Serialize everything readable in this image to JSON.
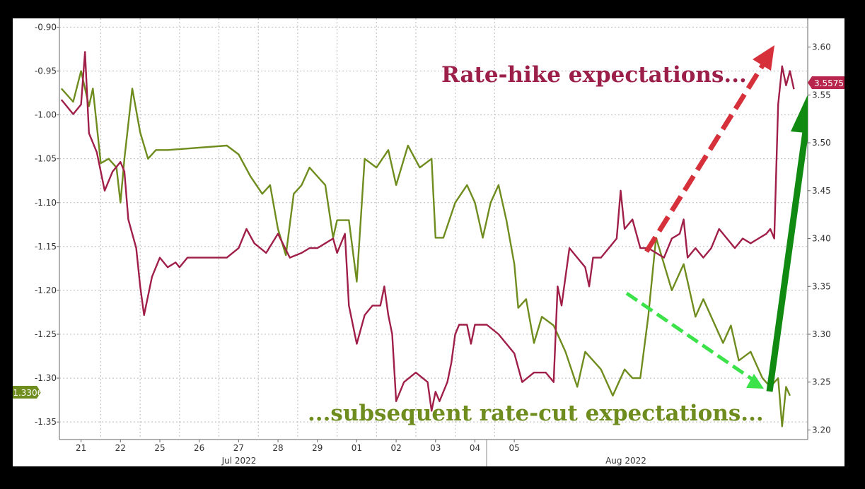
{
  "chart_data": {
    "type": "line",
    "title": "",
    "x": [
      "21",
      "22",
      "25",
      "26",
      "27",
      "28",
      "29",
      "01",
      "02",
      "03",
      "04",
      "05"
    ],
    "x_month_labels": [
      "Jul 2022",
      "Aug 2022"
    ],
    "left_axis": {
      "ylim": [
        -1.37,
        -0.89
      ],
      "ticks": [
        "-0.90",
        "-0.95",
        "-1.00",
        "-1.05",
        "-1.10",
        "-1.15",
        "-1.20",
        "-1.25",
        "-1.30",
        "-1.35"
      ]
    },
    "right_axis": {
      "ylim": [
        3.19,
        3.63
      ],
      "ticks": [
        "3.60",
        "3.55",
        "3.50",
        "3.45",
        "3.40",
        "3.35",
        "3.30",
        "3.25",
        "3.20"
      ]
    },
    "grid": true,
    "series": [
      {
        "axis": "left",
        "color": "#6f8c1e",
        "points": [
          [
            20.5,
            -0.97
          ],
          [
            20.8,
            -0.985
          ],
          [
            21.0,
            -0.95
          ],
          [
            21.2,
            -0.99
          ],
          [
            21.3,
            -0.97
          ],
          [
            21.5,
            -1.055
          ],
          [
            21.7,
            -1.05
          ],
          [
            21.9,
            -1.06
          ],
          [
            22.0,
            -1.1
          ],
          [
            22.1,
            -1.05
          ],
          [
            22.3,
            -0.97
          ],
          [
            22.5,
            -1.02
          ],
          [
            22.7,
            -1.05
          ],
          [
            22.9,
            -1.04
          ],
          [
            23.2,
            -1.04
          ],
          [
            24.7,
            -1.035
          ],
          [
            25.0,
            -1.045
          ],
          [
            25.3,
            -1.07
          ],
          [
            25.6,
            -1.09
          ],
          [
            25.8,
            -1.08
          ],
          [
            26.0,
            -1.13
          ],
          [
            26.2,
            -1.16
          ],
          [
            26.4,
            -1.09
          ],
          [
            26.6,
            -1.08
          ],
          [
            26.8,
            -1.06
          ],
          [
            27.0,
            -1.07
          ],
          [
            27.2,
            -1.08
          ],
          [
            27.4,
            -1.14
          ],
          [
            27.5,
            -1.12
          ],
          [
            27.8,
            -1.12
          ],
          [
            28.0,
            -1.19
          ],
          [
            28.2,
            -1.05
          ],
          [
            28.5,
            -1.06
          ],
          [
            28.8,
            -1.04
          ],
          [
            29.0,
            -1.08
          ],
          [
            29.3,
            -1.035
          ],
          [
            29.6,
            -1.06
          ],
          [
            29.9,
            -1.05
          ],
          [
            30.0,
            -1.14
          ],
          [
            30.2,
            -1.14
          ],
          [
            30.5,
            -1.1
          ],
          [
            30.8,
            -1.08
          ],
          [
            31.0,
            -1.1
          ],
          [
            31.2,
            -1.14
          ],
          [
            31.4,
            -1.1
          ],
          [
            31.6,
            -1.08
          ],
          [
            31.8,
            -1.12
          ],
          [
            32.0,
            -1.17
          ],
          [
            32.1,
            -1.22
          ],
          [
            32.3,
            -1.21
          ],
          [
            32.5,
            -1.26
          ],
          [
            32.7,
            -1.23
          ],
          [
            33.0,
            -1.24
          ],
          [
            33.3,
            -1.27
          ],
          [
            33.6,
            -1.31
          ],
          [
            33.8,
            -1.27
          ],
          [
            34.0,
            -1.28
          ],
          [
            34.2,
            -1.29
          ],
          [
            34.5,
            -1.32
          ],
          [
            34.8,
            -1.29
          ],
          [
            35.0,
            -1.3
          ],
          [
            35.2,
            -1.3
          ],
          [
            35.4,
            -1.23
          ],
          [
            35.6,
            -1.14
          ],
          [
            35.8,
            -1.17
          ],
          [
            36.0,
            -1.2
          ],
          [
            36.2,
            -1.18
          ],
          [
            36.3,
            -1.17
          ],
          [
            36.4,
            -1.19
          ],
          [
            36.6,
            -1.23
          ],
          [
            36.8,
            -1.21
          ],
          [
            37.0,
            -1.23
          ],
          [
            37.3,
            -1.26
          ],
          [
            37.5,
            -1.24
          ],
          [
            37.7,
            -1.28
          ],
          [
            38.0,
            -1.27
          ],
          [
            38.3,
            -1.3
          ],
          [
            38.5,
            -1.31
          ],
          [
            38.7,
            -1.3
          ],
          [
            38.8,
            -1.355
          ],
          [
            38.9,
            -1.31
          ],
          [
            39.0,
            -1.32
          ]
        ]
      },
      {
        "axis": "right",
        "color": "#a01f48",
        "points": [
          [
            20.5,
            3.545
          ],
          [
            20.8,
            3.53
          ],
          [
            21.0,
            3.54
          ],
          [
            21.1,
            3.595
          ],
          [
            21.2,
            3.51
          ],
          [
            21.4,
            3.49
          ],
          [
            21.6,
            3.45
          ],
          [
            21.8,
            3.47
          ],
          [
            22.0,
            3.48
          ],
          [
            22.1,
            3.47
          ],
          [
            22.2,
            3.42
          ],
          [
            22.4,
            3.39
          ],
          [
            22.5,
            3.35
          ],
          [
            22.6,
            3.32
          ],
          [
            22.8,
            3.36
          ],
          [
            23.0,
            3.38
          ],
          [
            23.2,
            3.37
          ],
          [
            23.4,
            3.375
          ],
          [
            23.5,
            3.37
          ],
          [
            23.7,
            3.38
          ],
          [
            24.7,
            3.38
          ],
          [
            25.0,
            3.39
          ],
          [
            25.2,
            3.41
          ],
          [
            25.4,
            3.395
          ],
          [
            25.7,
            3.385
          ],
          [
            26.0,
            3.405
          ],
          [
            26.3,
            3.38
          ],
          [
            26.6,
            3.385
          ],
          [
            26.8,
            3.39
          ],
          [
            27.0,
            3.39
          ],
          [
            27.2,
            3.395
          ],
          [
            27.4,
            3.4
          ],
          [
            27.5,
            3.385
          ],
          [
            27.7,
            3.405
          ],
          [
            27.8,
            3.33
          ],
          [
            28.0,
            3.29
          ],
          [
            28.2,
            3.32
          ],
          [
            28.4,
            3.33
          ],
          [
            28.6,
            3.33
          ],
          [
            28.7,
            3.35
          ],
          [
            28.8,
            3.32
          ],
          [
            28.9,
            3.3
          ],
          [
            29.0,
            3.23
          ],
          [
            29.2,
            3.25
          ],
          [
            29.5,
            3.26
          ],
          [
            29.8,
            3.25
          ],
          [
            29.9,
            3.22
          ],
          [
            30.0,
            3.24
          ],
          [
            30.1,
            3.23
          ],
          [
            30.3,
            3.25
          ],
          [
            30.4,
            3.27
          ],
          [
            30.5,
            3.3
          ],
          [
            30.6,
            3.31
          ],
          [
            30.8,
            3.31
          ],
          [
            30.9,
            3.29
          ],
          [
            31.0,
            3.31
          ],
          [
            31.3,
            3.31
          ],
          [
            31.6,
            3.3
          ],
          [
            31.8,
            3.29
          ],
          [
            32.0,
            3.28
          ],
          [
            32.2,
            3.25
          ],
          [
            32.5,
            3.26
          ],
          [
            32.8,
            3.26
          ],
          [
            33.0,
            3.25
          ],
          [
            33.1,
            3.35
          ],
          [
            33.2,
            3.33
          ],
          [
            33.4,
            3.39
          ],
          [
            33.6,
            3.38
          ],
          [
            33.8,
            3.37
          ],
          [
            33.9,
            3.35
          ],
          [
            34.0,
            3.38
          ],
          [
            34.2,
            3.38
          ],
          [
            34.4,
            3.39
          ],
          [
            34.6,
            3.4
          ],
          [
            34.7,
            3.45
          ],
          [
            34.8,
            3.41
          ],
          [
            35.0,
            3.42
          ],
          [
            35.2,
            3.39
          ],
          [
            35.4,
            3.39
          ],
          [
            35.6,
            3.385
          ],
          [
            35.8,
            3.38
          ],
          [
            36.0,
            3.4
          ],
          [
            36.2,
            3.405
          ],
          [
            36.3,
            3.42
          ],
          [
            36.4,
            3.38
          ],
          [
            36.6,
            3.39
          ],
          [
            36.8,
            3.38
          ],
          [
            37.0,
            3.39
          ],
          [
            37.2,
            3.41
          ],
          [
            37.4,
            3.4
          ],
          [
            37.6,
            3.39
          ],
          [
            37.8,
            3.4
          ],
          [
            38.0,
            3.395
          ],
          [
            38.2,
            3.4
          ],
          [
            38.4,
            3.405
          ],
          [
            38.5,
            3.41
          ],
          [
            38.6,
            3.4
          ],
          [
            38.7,
            3.54
          ],
          [
            38.8,
            3.58
          ],
          [
            38.9,
            3.56
          ],
          [
            39.0,
            3.575
          ],
          [
            39.1,
            3.556
          ]
        ]
      }
    ],
    "last_value_labels": {
      "left": "-1.3306",
      "right": "3.5575"
    },
    "annotations": [
      "Rate-hike expectations...",
      "...subsequent rate-cut expectations..."
    ]
  },
  "colors": {
    "green_series": "#6f8c1e",
    "red_series": "#a01f48",
    "hike_arrow": "#d6303b",
    "cut_arrow": "#3be24a",
    "big_arrow": "#108a10"
  }
}
